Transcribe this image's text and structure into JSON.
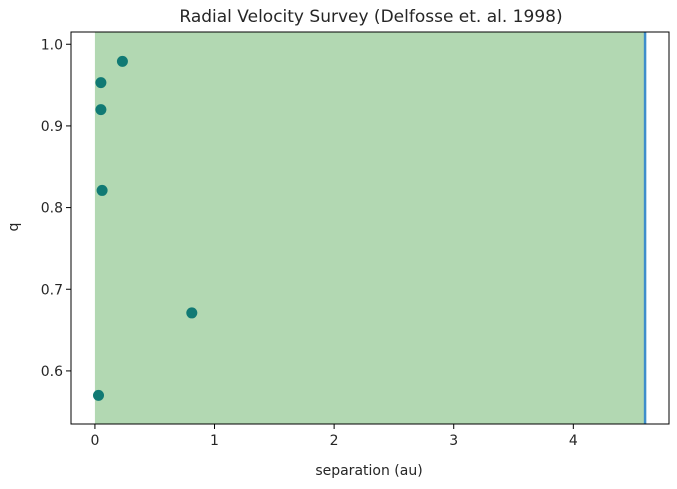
{
  "chart_data": {
    "type": "scatter",
    "title": "Radial Velocity Survey (Delfosse et. al. 1998)",
    "xlabel": "separation (au)",
    "ylabel": "q",
    "xlim": [
      -0.2,
      4.8
    ],
    "ylim": [
      0.535,
      1.015
    ],
    "xticks": [
      0,
      1,
      2,
      3,
      4
    ],
    "yticks": [
      0.6,
      0.7,
      0.8,
      0.9,
      1.0
    ],
    "xtick_labels": [
      "0",
      "1",
      "2",
      "3",
      "4"
    ],
    "ytick_labels": [
      "0.6",
      "0.7",
      "0.8",
      "0.9",
      "1.0"
    ],
    "grid": false,
    "shaded_region": {
      "x_start": 0,
      "x_end": 4.6,
      "color": "#b2d8b2"
    },
    "vertical_line": {
      "x": 4.6,
      "color": "#3e8ecb"
    },
    "point_color": "#117a74",
    "points": [
      {
        "x": 0.23,
        "y": 0.979
      },
      {
        "x": 0.05,
        "y": 0.953
      },
      {
        "x": 0.05,
        "y": 0.92
      },
      {
        "x": 0.06,
        "y": 0.821
      },
      {
        "x": 0.81,
        "y": 0.671
      },
      {
        "x": 0.03,
        "y": 0.57
      }
    ]
  }
}
